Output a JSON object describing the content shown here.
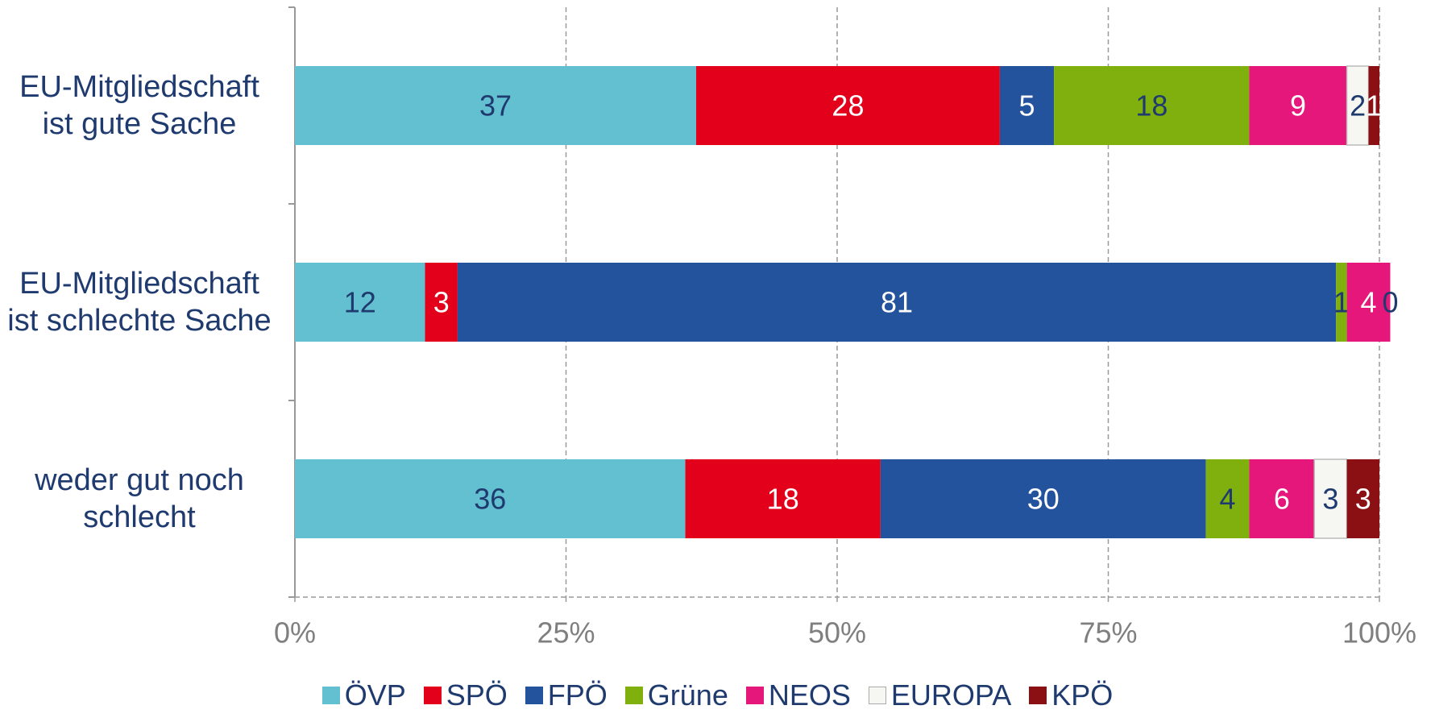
{
  "chart_data": {
    "type": "stacked_barh",
    "categories": [
      "EU-Mitgliedschaft ist gute Sache",
      "EU-Mitgliedschaft ist schlechte Sache",
      "weder gut noch schlecht"
    ],
    "series": [
      {
        "name": "ÖVP",
        "color": "#62c0d0",
        "label_color": "#1f3a6e",
        "values": [
          37,
          12,
          36
        ]
      },
      {
        "name": "SPÖ",
        "color": "#e2001a",
        "label_color": "#ffffff",
        "values": [
          28,
          3,
          18
        ]
      },
      {
        "name": "FPÖ",
        "color": "#24539e",
        "label_color": "#ffffff",
        "values": [
          5,
          81,
          30
        ]
      },
      {
        "name": "Grüne",
        "color": "#7fb00e",
        "label_color": "#1f3a6e",
        "values": [
          18,
          1,
          4
        ]
      },
      {
        "name": "NEOS",
        "color": "#e5177b",
        "label_color": "#ffffff",
        "values": [
          9,
          4,
          6
        ]
      },
      {
        "name": "EUROPA",
        "color": "#f6f6f2",
        "label_color": "#1f3a6e",
        "values": [
          2,
          0,
          3
        ]
      },
      {
        "name": "KPÖ",
        "color": "#8b1014",
        "label_color": "#ffffff",
        "values": [
          1,
          null,
          3
        ]
      }
    ],
    "xlim": [
      0,
      100
    ],
    "xticks": [
      {
        "value": 0,
        "label": "0%"
      },
      {
        "value": 25,
        "label": "25%"
      },
      {
        "value": 50,
        "label": "50%"
      },
      {
        "value": 75,
        "label": "75%"
      },
      {
        "value": 100,
        "label": "100%"
      }
    ],
    "grid": true,
    "legend": "bottom"
  }
}
